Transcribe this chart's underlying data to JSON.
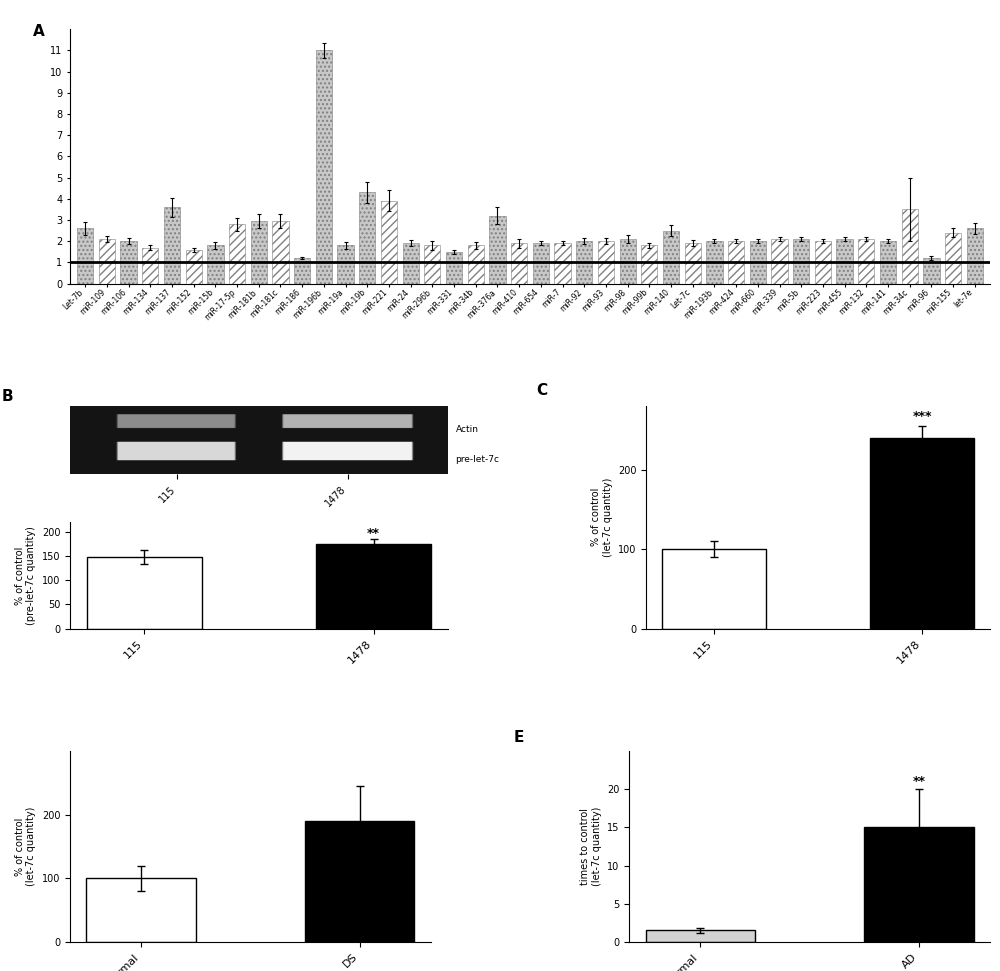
{
  "panel_A": {
    "labels": [
      "Let-7b",
      "miR-109",
      "miR-106",
      "miR-134",
      "miR-137",
      "miR-152",
      "miR-15b",
      "miR-17-5p",
      "miR-181b",
      "miR-181c",
      "miR-186",
      "miR-196b",
      "miR-19a",
      "miR-19b",
      "miR-221",
      "miR-24",
      "miR-296b",
      "miR-331",
      "miR-34b",
      "miR-376a",
      "miR-410",
      "miR-654",
      "miR-7",
      "miR-92",
      "miR-93",
      "miR-98",
      "miR-99b",
      "miR-140",
      "Let-7c",
      "miR-193b",
      "miR-424",
      "miR-660",
      "miR-339",
      "miR-5b",
      "miR-223",
      "miR-455",
      "miR-132",
      "miR-141",
      "miR-34c",
      "miR-96",
      "miR-155",
      "let-7e"
    ],
    "values": [
      2.6,
      2.1,
      2.0,
      1.7,
      3.6,
      1.6,
      1.8,
      2.8,
      2.95,
      2.95,
      1.2,
      11.0,
      1.8,
      4.3,
      3.9,
      1.9,
      1.8,
      1.5,
      1.8,
      3.2,
      1.9,
      1.9,
      1.9,
      2.0,
      2.0,
      2.1,
      1.8,
      2.5,
      1.9,
      2.0,
      2.0,
      2.0,
      2.1,
      2.1,
      2.0,
      2.1,
      2.1,
      2.0,
      3.5,
      1.2,
      2.4,
      2.6
    ],
    "errors": [
      0.3,
      0.15,
      0.15,
      0.1,
      0.45,
      0.1,
      0.15,
      0.3,
      0.35,
      0.35,
      0.05,
      0.35,
      0.15,
      0.5,
      0.5,
      0.15,
      0.2,
      0.1,
      0.15,
      0.4,
      0.2,
      0.1,
      0.1,
      0.15,
      0.15,
      0.2,
      0.1,
      0.25,
      0.15,
      0.1,
      0.1,
      0.1,
      0.1,
      0.1,
      0.1,
      0.1,
      0.1,
      0.1,
      1.5,
      0.1,
      0.2,
      0.25
    ],
    "styles": [
      "dot",
      "hatch",
      "dot",
      "hatch",
      "dot",
      "hatch",
      "dot",
      "hatch",
      "dot",
      "hatch",
      "dot",
      "dot",
      "dot",
      "dot",
      "hatch",
      "dot",
      "hatch",
      "dot",
      "hatch",
      "dot",
      "hatch",
      "dot",
      "hatch",
      "dot",
      "hatch",
      "dot",
      "hatch",
      "dot",
      "hatch",
      "dot",
      "hatch",
      "dot",
      "hatch",
      "dot",
      "hatch",
      "dot",
      "hatch",
      "dot",
      "hatch",
      "dot",
      "hatch",
      "dot"
    ],
    "ylim": [
      0,
      12
    ],
    "yticks": [
      0,
      1,
      2,
      3,
      4,
      5,
      6,
      7,
      8,
      9,
      10,
      11
    ]
  },
  "panel_B": {
    "categories": [
      "115",
      "1478"
    ],
    "values": [
      148,
      175
    ],
    "errors": [
      15,
      10
    ],
    "colors": [
      "white",
      "black"
    ],
    "ylabel": "% of control\n(pre-let-7c quantity)",
    "ylim": [
      0,
      220
    ],
    "yticks": [
      0,
      50,
      100,
      150,
      200
    ],
    "ytick_labels": [
      "0",
      "50",
      "100",
      "150",
      "200"
    ],
    "sig": "**"
  },
  "panel_C": {
    "categories": [
      "115",
      "1478"
    ],
    "values": [
      100,
      240
    ],
    "errors": [
      10,
      15
    ],
    "colors": [
      "white",
      "black"
    ],
    "ylabel": "% of control\n(let-7c quantity)",
    "ylim": [
      0,
      280
    ],
    "yticks": [
      0,
      100,
      200
    ],
    "ytick_labels": [
      "0",
      "100",
      "200"
    ],
    "sig": "***"
  },
  "panel_D": {
    "categories": [
      "Normal",
      "DS"
    ],
    "values": [
      100,
      190
    ],
    "errors": [
      20,
      55
    ],
    "colors": [
      "white",
      "black"
    ],
    "ylabel": "% of control\n(let-7c quantity)",
    "ylim": [
      0,
      300
    ],
    "yticks": [
      0,
      100,
      200
    ],
    "ytick_labels": [
      "0",
      "100",
      "200"
    ]
  },
  "panel_E": {
    "categories": [
      "Normal",
      "AD"
    ],
    "values": [
      1.5,
      15
    ],
    "errors": [
      0.3,
      5
    ],
    "colors": [
      "lightgray",
      "black"
    ],
    "ylabel": "times to control\n(let-7c quantity)",
    "ylim": [
      0,
      25
    ],
    "yticks": [
      0,
      5,
      10,
      15,
      20
    ],
    "ytick_labels": [
      "0",
      "5",
      "10",
      "15",
      "20"
    ],
    "sig": "**"
  },
  "background_color": "#ffffff"
}
